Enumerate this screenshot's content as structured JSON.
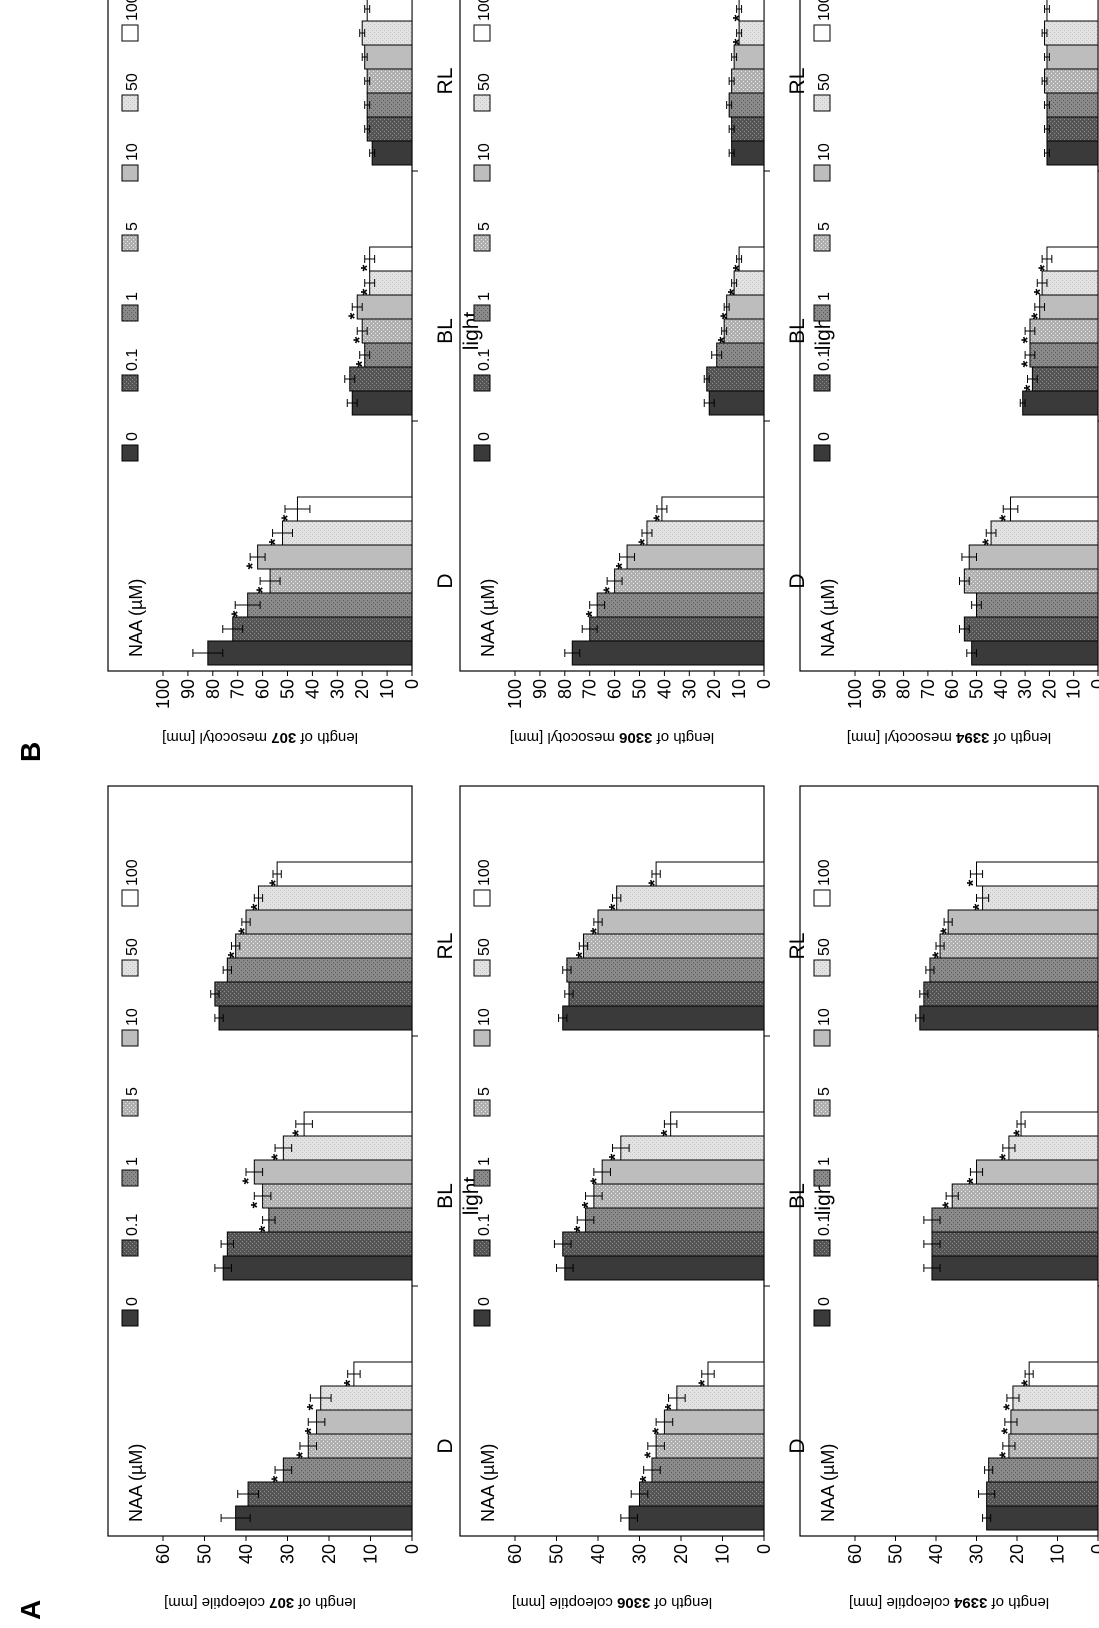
{
  "panel_labels": [
    "A",
    "B"
  ],
  "legend_title": "NAA (µM)",
  "legend_entries": [
    "0",
    "0.1",
    "1",
    "5",
    "10",
    "50",
    "100"
  ],
  "series_colors": [
    "#3a3a3a",
    "#555555",
    "#8a8a8a",
    "#a9a9a9",
    "#bdbdbd",
    "#dedede",
    "#ffffff"
  ],
  "group_axis_label": "light",
  "significance_marker": "*",
  "chart_data": [
    {
      "type": "bar",
      "panel": "A",
      "ylabel_pre": "length of ",
      "ylabel_bold": "307",
      "ylabel_post": " coleoptile [mm]",
      "ylim": [
        0,
        60
      ],
      "yticks": [
        0,
        10,
        20,
        30,
        40,
        50,
        60
      ],
      "categories": [
        "D",
        "BL",
        "RL"
      ],
      "series": [
        {
          "name": "0",
          "values": [
            42.5,
            45.5,
            46.5
          ],
          "errors": [
            3.5,
            2.0,
            1.0
          ],
          "sig": [
            false,
            false,
            false
          ]
        },
        {
          "name": "0.1",
          "values": [
            39.5,
            44.5,
            47.5
          ],
          "errors": [
            2.5,
            1.5,
            1.0
          ],
          "sig": [
            false,
            false,
            false
          ]
        },
        {
          "name": "1",
          "values": [
            31.0,
            34.5,
            44.5
          ],
          "errors": [
            2.0,
            1.5,
            1.0
          ],
          "sig": [
            true,
            true,
            false
          ]
        },
        {
          "name": "5",
          "values": [
            25.0,
            36.0,
            42.5
          ],
          "errors": [
            2.0,
            2.0,
            1.0
          ],
          "sig": [
            true,
            true,
            true
          ]
        },
        {
          "name": "10",
          "values": [
            23.0,
            38.0,
            40.0
          ],
          "errors": [
            2.0,
            2.0,
            1.0
          ],
          "sig": [
            true,
            true,
            true
          ]
        },
        {
          "name": "50",
          "values": [
            22.0,
            31.0,
            37.0
          ],
          "errors": [
            2.5,
            2.0,
            1.0
          ],
          "sig": [
            true,
            true,
            true
          ]
        },
        {
          "name": "100",
          "values": [
            14.0,
            26.0,
            32.5
          ],
          "errors": [
            1.5,
            2.0,
            1.0
          ],
          "sig": [
            true,
            true,
            true
          ]
        }
      ]
    },
    {
      "type": "bar",
      "panel": "A",
      "ylabel_pre": "length of ",
      "ylabel_bold": "3306",
      "ylabel_post": " coleoptile [mm]",
      "ylim": [
        0,
        60
      ],
      "yticks": [
        0,
        10,
        20,
        30,
        40,
        50,
        60
      ],
      "categories": [
        "D",
        "BL",
        "RL"
      ],
      "series": [
        {
          "name": "0",
          "values": [
            32.5,
            48.0,
            48.5
          ],
          "errors": [
            2.0,
            2.0,
            1.0
          ],
          "sig": [
            false,
            false,
            false
          ]
        },
        {
          "name": "0.1",
          "values": [
            30.0,
            48.5,
            47.0
          ],
          "errors": [
            2.0,
            2.0,
            1.0
          ],
          "sig": [
            false,
            false,
            false
          ]
        },
        {
          "name": "1",
          "values": [
            27.0,
            43.0,
            47.5
          ],
          "errors": [
            2.0,
            2.0,
            1.0
          ],
          "sig": [
            true,
            true,
            false
          ]
        },
        {
          "name": "5",
          "values": [
            26.0,
            41.0,
            43.5
          ],
          "errors": [
            2.0,
            2.0,
            1.0
          ],
          "sig": [
            true,
            true,
            true
          ]
        },
        {
          "name": "10",
          "values": [
            24.0,
            39.0,
            40.0
          ],
          "errors": [
            2.0,
            2.0,
            1.0
          ],
          "sig": [
            true,
            true,
            true
          ]
        },
        {
          "name": "50",
          "values": [
            21.0,
            34.5,
            35.5
          ],
          "errors": [
            2.0,
            2.0,
            1.0
          ],
          "sig": [
            true,
            true,
            true
          ]
        },
        {
          "name": "100",
          "values": [
            13.5,
            22.5,
            26.0
          ],
          "errors": [
            1.5,
            1.5,
            1.0
          ],
          "sig": [
            true,
            true,
            true
          ]
        }
      ]
    },
    {
      "type": "bar",
      "panel": "A",
      "ylabel_pre": "length of ",
      "ylabel_bold": "3394",
      "ylabel_post": " coleoptile [mm]",
      "ylim": [
        0,
        60
      ],
      "yticks": [
        0,
        10,
        20,
        30,
        40,
        50,
        60
      ],
      "categories": [
        "D",
        "BL",
        "RL"
      ],
      "series": [
        {
          "name": "0",
          "values": [
            27.5,
            41.0,
            44.0
          ],
          "errors": [
            1.0,
            2.0,
            1.0
          ],
          "sig": [
            false,
            false,
            false
          ]
        },
        {
          "name": "0.1",
          "values": [
            27.5,
            41.0,
            43.0
          ],
          "errors": [
            2.0,
            2.0,
            1.0
          ],
          "sig": [
            false,
            false,
            false
          ]
        },
        {
          "name": "1",
          "values": [
            27.0,
            41.0,
            41.5
          ],
          "errors": [
            1.0,
            2.0,
            1.0
          ],
          "sig": [
            false,
            false,
            false
          ]
        },
        {
          "name": "5",
          "values": [
            22.0,
            36.0,
            39.0
          ],
          "errors": [
            1.5,
            1.5,
            1.0
          ],
          "sig": [
            true,
            true,
            true
          ]
        },
        {
          "name": "10",
          "values": [
            21.5,
            30.0,
            37.0
          ],
          "errors": [
            1.5,
            1.5,
            1.0
          ],
          "sig": [
            true,
            true,
            true
          ]
        },
        {
          "name": "50",
          "values": [
            21.0,
            22.0,
            28.5
          ],
          "errors": [
            1.5,
            1.5,
            1.5
          ],
          "sig": [
            true,
            true,
            true
          ]
        },
        {
          "name": "100",
          "values": [
            17.0,
            19.0,
            30.0
          ],
          "errors": [
            1.0,
            1.0,
            1.5
          ],
          "sig": [
            true,
            true,
            true
          ]
        }
      ]
    },
    {
      "type": "bar",
      "panel": "B",
      "ylabel_pre": "length of ",
      "ylabel_bold": "307",
      "ylabel_post": " mesocotyl [mm]",
      "ylim": [
        0,
        100
      ],
      "yticks": [
        0,
        10,
        20,
        30,
        40,
        50,
        60,
        70,
        80,
        90,
        100
      ],
      "categories": [
        "D",
        "BL",
        "RL"
      ],
      "series": [
        {
          "name": "0",
          "values": [
            82,
            24,
            16
          ],
          "errors": [
            6,
            2,
            1
          ],
          "sig": [
            false,
            false,
            false
          ]
        },
        {
          "name": "0.1",
          "values": [
            72,
            25,
            18
          ],
          "errors": [
            4,
            2,
            1
          ],
          "sig": [
            false,
            false,
            false
          ]
        },
        {
          "name": "1",
          "values": [
            66,
            19,
            18
          ],
          "errors": [
            5,
            2,
            1
          ],
          "sig": [
            true,
            true,
            false
          ]
        },
        {
          "name": "5",
          "values": [
            57,
            20,
            18
          ],
          "errors": [
            4,
            2,
            1
          ],
          "sig": [
            true,
            true,
            false
          ]
        },
        {
          "name": "10",
          "values": [
            62,
            22,
            19
          ],
          "errors": [
            3,
            2,
            1
          ],
          "sig": [
            true,
            true,
            false
          ]
        },
        {
          "name": "50",
          "values": [
            52,
            17,
            20
          ],
          "errors": [
            4,
            2,
            1
          ],
          "sig": [
            true,
            true,
            false
          ]
        },
        {
          "name": "100",
          "values": [
            46,
            17,
            18
          ],
          "errors": [
            5,
            2,
            1
          ],
          "sig": [
            true,
            true,
            false
          ]
        }
      ]
    },
    {
      "type": "bar",
      "panel": "B",
      "ylabel_pre": "length of ",
      "ylabel_bold": "3306",
      "ylabel_post": " mesocotyl [mm]",
      "ylim": [
        0,
        100
      ],
      "yticks": [
        0,
        10,
        20,
        30,
        40,
        50,
        60,
        70,
        80,
        90,
        100
      ],
      "categories": [
        "D",
        "BL",
        "RL"
      ],
      "series": [
        {
          "name": "0",
          "values": [
            77,
            22,
            13
          ],
          "errors": [
            3,
            2,
            1
          ],
          "sig": [
            false,
            false,
            false
          ]
        },
        {
          "name": "0.1",
          "values": [
            70,
            23,
            13
          ],
          "errors": [
            3,
            1,
            1
          ],
          "sig": [
            false,
            false,
            false
          ]
        },
        {
          "name": "1",
          "values": [
            67,
            19,
            14
          ],
          "errors": [
            3,
            2,
            1
          ],
          "sig": [
            true,
            false,
            false
          ]
        },
        {
          "name": "5",
          "values": [
            60,
            16,
            13
          ],
          "errors": [
            3,
            1,
            1
          ],
          "sig": [
            true,
            true,
            false
          ]
        },
        {
          "name": "10",
          "values": [
            55,
            15,
            12
          ],
          "errors": [
            3,
            1,
            1
          ],
          "sig": [
            true,
            true,
            false
          ]
        },
        {
          "name": "50",
          "values": [
            47,
            12,
            10
          ],
          "errors": [
            2,
            1,
            1
          ],
          "sig": [
            true,
            true,
            true
          ]
        },
        {
          "name": "100",
          "values": [
            41,
            10,
            10
          ],
          "errors": [
            2,
            1,
            1
          ],
          "sig": [
            true,
            true,
            true
          ]
        }
      ]
    },
    {
      "type": "bar",
      "panel": "B",
      "ylabel_pre": "length of ",
      "ylabel_bold": "3394",
      "ylabel_post": " mesocotyl [mm]",
      "ylim": [
        0,
        100
      ],
      "yticks": [
        0,
        10,
        20,
        30,
        40,
        50,
        60,
        70,
        80,
        90,
        100
      ],
      "categories": [
        "D",
        "BL",
        "RL"
      ],
      "series": [
        {
          "name": "0",
          "values": [
            52,
            31,
            21
          ],
          "errors": [
            2,
            1,
            1
          ],
          "sig": [
            false,
            false,
            false
          ]
        },
        {
          "name": "0.1",
          "values": [
            55,
            27,
            21
          ],
          "errors": [
            2,
            2,
            1
          ],
          "sig": [
            false,
            true,
            false
          ]
        },
        {
          "name": "1",
          "values": [
            50,
            28,
            21
          ],
          "errors": [
            2,
            2,
            1
          ],
          "sig": [
            false,
            true,
            false
          ]
        },
        {
          "name": "5",
          "values": [
            55,
            28,
            22
          ],
          "errors": [
            2,
            2,
            1
          ],
          "sig": [
            false,
            true,
            false
          ]
        },
        {
          "name": "10",
          "values": [
            53,
            24,
            21
          ],
          "errors": [
            3,
            2,
            1
          ],
          "sig": [
            false,
            true,
            false
          ]
        },
        {
          "name": "50",
          "values": [
            44,
            23,
            22
          ],
          "errors": [
            2,
            2,
            1
          ],
          "sig": [
            true,
            true,
            false
          ]
        },
        {
          "name": "100",
          "values": [
            36,
            21,
            21
          ],
          "errors": [
            3,
            2,
            1
          ],
          "sig": [
            true,
            true,
            false
          ]
        }
      ]
    }
  ]
}
